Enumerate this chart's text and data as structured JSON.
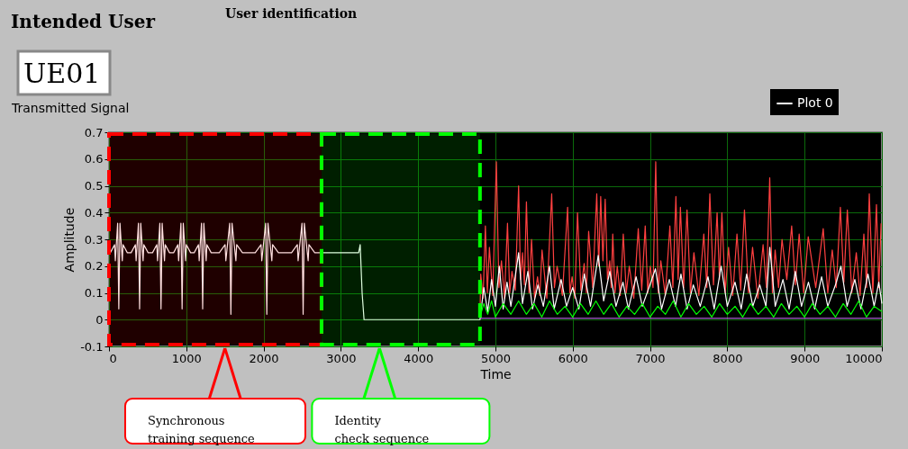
{
  "chart_data": {
    "type": "line",
    "xlabel": "Time",
    "ylabel": "Amplitude",
    "xlim": [
      0,
      10000
    ],
    "xticks": [
      0,
      1000,
      2000,
      3000,
      4000,
      5000,
      6000,
      7000,
      8000,
      9000,
      10000
    ],
    "ylim": [
      -0.1,
      0.7
    ],
    "yticks": [
      -0.1,
      0,
      0.1,
      0.2,
      0.3,
      0.4,
      0.5,
      0.6,
      0.7
    ],
    "grid": true,
    "legend": "top right",
    "line_style": "solid",
    "marker": "none",
    "annotations": [
      "Intended User",
      "UE01",
      "User identification",
      "Transmitted Signal"
    ],
    "bands": [
      {
        "axis": "x",
        "from": 0,
        "to": 2750,
        "label": "Synchronous\ntraining sequence",
        "color": "#ff0000"
      },
      {
        "axis": "x",
        "from": 2750,
        "to": 4800,
        "label": "Identity\ncheck sequence",
        "color": "#00ff00"
      }
    ],
    "series": [
      {
        "color": "#ff4040",
        "x": [
          4800,
          4810,
          4840,
          4870,
          4895,
          4922,
          4965,
          5012,
          5045,
          5078,
          5117,
          5156,
          5185,
          5214,
          5257,
          5300,
          5325,
          5350,
          5375,
          5401,
          5434,
          5467,
          5506,
          5545,
          5574,
          5603,
          5665,
          5728,
          5763,
          5798,
          5866,
          5934,
          5963,
          5992,
          6027,
          6062,
          6105,
          6148,
          6177,
          6206,
          6258,
          6311,
          6336,
          6362,
          6391,
          6420,
          6450,
          6479,
          6498,
          6518,
          6547,
          6576,
          6615,
          6654,
          6693,
          6732,
          6790,
          6848,
          6893,
          6938,
          6971,
          7004,
          7039,
          7074,
          7107,
          7140,
          7198,
          7257,
          7296,
          7335,
          7364,
          7393,
          7436,
          7479,
          7523,
          7568,
          7632,
          7696,
          7735,
          7774,
          7821,
          7868,
          7899,
          7930,
          7973,
          8016,
          8070,
          8125,
          8173,
          8222,
          8274,
          8327,
          8395,
          8463,
          8506,
          8549,
          8584,
          8619,
          8663,
          8708,
          8770,
          8833,
          8881,
          8930,
          8988,
          9047,
          9144,
          9241,
          9300,
          9358,
          9410,
          9463,
          9508,
          9553,
          9611,
          9669,
          9718,
          9767,
          9802,
          9837,
          9883,
          9930,
          9960,
          9990
        ],
        "values": [
          0.02,
          0.17,
          0.08,
          0.35,
          0.1,
          0.27,
          0.09,
          0.59,
          0.12,
          0.22,
          0.08,
          0.36,
          0.1,
          0.18,
          0.11,
          0.5,
          0.15,
          0.25,
          0.13,
          0.44,
          0.1,
          0.3,
          0.08,
          0.16,
          0.09,
          0.26,
          0.08,
          0.47,
          0.12,
          0.2,
          0.09,
          0.42,
          0.1,
          0.16,
          0.08,
          0.4,
          0.11,
          0.21,
          0.1,
          0.33,
          0.12,
          0.47,
          0.2,
          0.46,
          0.22,
          0.45,
          0.15,
          0.22,
          0.12,
          0.32,
          0.1,
          0.2,
          0.09,
          0.32,
          0.1,
          0.2,
          0.08,
          0.34,
          0.11,
          0.35,
          0.1,
          0.2,
          0.12,
          0.59,
          0.1,
          0.22,
          0.09,
          0.35,
          0.12,
          0.46,
          0.15,
          0.42,
          0.12,
          0.41,
          0.1,
          0.25,
          0.09,
          0.32,
          0.12,
          0.47,
          0.13,
          0.4,
          0.15,
          0.4,
          0.1,
          0.27,
          0.09,
          0.32,
          0.11,
          0.41,
          0.1,
          0.27,
          0.08,
          0.28,
          0.12,
          0.53,
          0.1,
          0.26,
          0.12,
          0.3,
          0.15,
          0.35,
          0.13,
          0.32,
          0.1,
          0.31,
          0.12,
          0.34,
          0.1,
          0.26,
          0.12,
          0.42,
          0.14,
          0.41,
          0.1,
          0.25,
          0.09,
          0.32,
          0.12,
          0.47,
          0.1,
          0.43,
          0.12,
          0.36
        ]
      },
      {
        "name": "Plot 0",
        "color": "#ffffff",
        "x": [
          0,
          17,
          72,
          82,
          112,
          127,
          142,
          172,
          182,
          237,
          286,
          341,
          351,
          381,
          396,
          411,
          441,
          451,
          506,
          563,
          618,
          628,
          658,
          673,
          688,
          718,
          728,
          783,
          836,
          891,
          901,
          931,
          946,
          961,
          991,
          1001,
          1056,
          1102,
          1157,
          1167,
          1197,
          1212,
          1227,
          1257,
          1267,
          1322,
          1427,
          1502,
          1512,
          1562,
          1577,
          1592,
          1642,
          1652,
          1727,
          1892,
          1967,
          1977,
          2027,
          2042,
          2057,
          2107,
          2117,
          2192,
          2362,
          2437,
          2447,
          2497,
          2512,
          2527,
          2577,
          2587,
          2662,
          2750,
          3230,
          3250,
          3275,
          3300,
          4780,
          4800,
          4850,
          4900,
          4950,
          5000,
          5050,
          5100,
          5150,
          5200,
          5300,
          5350,
          5420,
          5480,
          5550,
          5620,
          5700,
          5760,
          5850,
          5920,
          6000,
          6080,
          6150,
          6230,
          6330,
          6400,
          6480,
          6560,
          6650,
          6720,
          6820,
          6900,
          7000,
          7070,
          7150,
          7250,
          7330,
          7400,
          7480,
          7560,
          7650,
          7750,
          7830,
          7920,
          8000,
          8100,
          8180,
          8250,
          8330,
          8420,
          8500,
          8550,
          8620,
          8720,
          8800,
          8880,
          8960,
          9050,
          9130,
          9220,
          9300,
          9400,
          9470,
          9550,
          9650,
          9730,
          9820,
          9900,
          9960,
          10000
        ],
        "values": [
          0.25,
          0.25,
          0.28,
          0.22,
          0.36,
          0.04,
          0.36,
          0.22,
          0.28,
          0.25,
          0.25,
          0.28,
          0.22,
          0.36,
          0.04,
          0.36,
          0.22,
          0.28,
          0.25,
          0.25,
          0.28,
          0.22,
          0.36,
          0.04,
          0.36,
          0.22,
          0.28,
          0.25,
          0.25,
          0.28,
          0.22,
          0.36,
          0.04,
          0.36,
          0.22,
          0.28,
          0.25,
          0.25,
          0.28,
          0.22,
          0.36,
          0.04,
          0.36,
          0.22,
          0.28,
          0.25,
          0.25,
          0.28,
          0.22,
          0.36,
          0.02,
          0.36,
          0.22,
          0.28,
          0.25,
          0.25,
          0.28,
          0.22,
          0.36,
          0.02,
          0.36,
          0.22,
          0.28,
          0.25,
          0.25,
          0.28,
          0.22,
          0.36,
          0.02,
          0.36,
          0.22,
          0.28,
          0.25,
          0.25,
          0.25,
          0.28,
          0.1,
          0,
          0,
          0,
          0.12,
          0.03,
          0.15,
          0.05,
          0.2,
          0.04,
          0.14,
          0.05,
          0.25,
          0.06,
          0.18,
          0.04,
          0.13,
          0.05,
          0.2,
          0.04,
          0.15,
          0.05,
          0.12,
          0.04,
          0.17,
          0.05,
          0.24,
          0.07,
          0.18,
          0.05,
          0.14,
          0.04,
          0.16,
          0.05,
          0.13,
          0.19,
          0.04,
          0.15,
          0.05,
          0.17,
          0.04,
          0.13,
          0.05,
          0.16,
          0.04,
          0.2,
          0.05,
          0.14,
          0.04,
          0.17,
          0.05,
          0.13,
          0.05,
          0.27,
          0.05,
          0.15,
          0.04,
          0.18,
          0.05,
          0.14,
          0.04,
          0.16,
          0.05,
          0.13,
          0.2,
          0.05,
          0.15,
          0.04,
          0.17,
          0.05,
          0.14,
          0.06
        ]
      },
      {
        "color": "#00ff00",
        "x": [
          4800,
          4850,
          4900,
          4950,
          5000,
          5100,
          5200,
          5300,
          5400,
          5500,
          5600,
          5700,
          5800,
          5900,
          6000,
          6100,
          6200,
          6300,
          6400,
          6500,
          6600,
          6700,
          6800,
          6900,
          7000,
          7100,
          7200,
          7300,
          7400,
          7500,
          7600,
          7700,
          7800,
          7900,
          8000,
          8100,
          8200,
          8300,
          8400,
          8500,
          8600,
          8700,
          8800,
          8900,
          9000,
          9100,
          9200,
          9300,
          9400,
          9500,
          9600,
          9700,
          9800,
          9900,
          10000
        ],
        "values": [
          0.01,
          0.06,
          0.02,
          0.07,
          0.01,
          0.06,
          0.02,
          0.07,
          0.02,
          0.06,
          0.01,
          0.07,
          0.02,
          0.05,
          0.01,
          0.06,
          0.02,
          0.07,
          0.02,
          0.06,
          0.01,
          0.05,
          0.02,
          0.06,
          0.01,
          0.05,
          0.02,
          0.07,
          0.01,
          0.06,
          0.02,
          0.05,
          0.01,
          0.06,
          0.02,
          0.05,
          0.01,
          0.06,
          0.02,
          0.05,
          0.01,
          0.06,
          0.02,
          0.05,
          0.01,
          0.06,
          0.02,
          0.05,
          0.01,
          0.06,
          0.02,
          0.07,
          0.01,
          0.05,
          0.03
        ]
      },
      {
        "color": "#d070ff",
        "x": [
          4800,
          10000
        ],
        "values": [
          0.005,
          0.005
        ]
      }
    ]
  }
}
